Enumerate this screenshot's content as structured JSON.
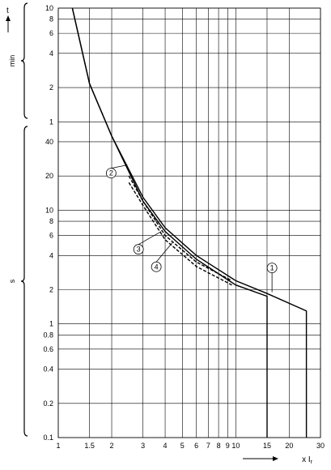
{
  "chart_data": {
    "type": "line",
    "title": "",
    "xlabel": "x Ir",
    "ylabel": "t",
    "xscale": "log",
    "yscale": "log",
    "xlim": [
      1,
      30
    ],
    "x_ticks": [
      "1",
      "1.5",
      "2",
      "3",
      "4",
      "5",
      "6",
      "7",
      "8",
      "9",
      "10",
      "15",
      "20",
      "30"
    ],
    "y_ticks_min": [
      "1",
      "2",
      "4",
      "6",
      "8",
      "10"
    ],
    "y_ticks_s": [
      "0.1",
      "0.2",
      "0.4",
      "0.6",
      "0.8",
      "1",
      "2",
      "4",
      "6",
      "8",
      "10",
      "20",
      "40"
    ],
    "y_unit_min": "min",
    "y_unit_s": "s",
    "grid": true,
    "series": [
      {
        "label": "1",
        "style": "solid",
        "points": [
          [
            1.2,
            600
          ],
          [
            1.5,
            130
          ],
          [
            2.0,
            45
          ],
          [
            3.0,
            13
          ],
          [
            4.0,
            7.0
          ],
          [
            6.0,
            4.0
          ],
          [
            10.0,
            2.4
          ],
          [
            15.0,
            1.85
          ],
          [
            25.0,
            1.3
          ],
          [
            25.0,
            0.1
          ]
        ]
      },
      {
        "label": "2",
        "style": "solid",
        "points": [
          [
            1.2,
            600
          ],
          [
            1.5,
            130
          ],
          [
            2.0,
            45
          ],
          [
            3.0,
            12
          ],
          [
            4.0,
            6.5
          ],
          [
            6.0,
            3.7
          ],
          [
            10.0,
            2.2
          ],
          [
            15.0,
            1.75
          ],
          [
            15.0,
            0.1
          ]
        ]
      },
      {
        "label": "3",
        "style": "dashed",
        "points": [
          [
            2.5,
            20
          ],
          [
            3.0,
            12
          ],
          [
            4.0,
            6.0
          ],
          [
            6.0,
            3.5
          ],
          [
            9.5,
            2.4
          ]
        ]
      },
      {
        "label": "4",
        "style": "dashed",
        "points": [
          [
            2.5,
            17.5
          ],
          [
            3.0,
            11
          ],
          [
            4.0,
            5.5
          ],
          [
            6.0,
            3.2
          ],
          [
            9.5,
            2.2
          ]
        ]
      }
    ],
    "annotations": [
      {
        "label": "1",
        "target_x": 16.0,
        "target_y": 1.9,
        "series": 0
      },
      {
        "label": "2",
        "target_x": 2.45,
        "target_y": 25,
        "series": 1
      },
      {
        "label": "3",
        "target_x": 3.8,
        "target_y": 6.5,
        "series": 2
      },
      {
        "label": "4",
        "target_x": 4.4,
        "target_y": 5.2,
        "series": 3
      }
    ]
  }
}
